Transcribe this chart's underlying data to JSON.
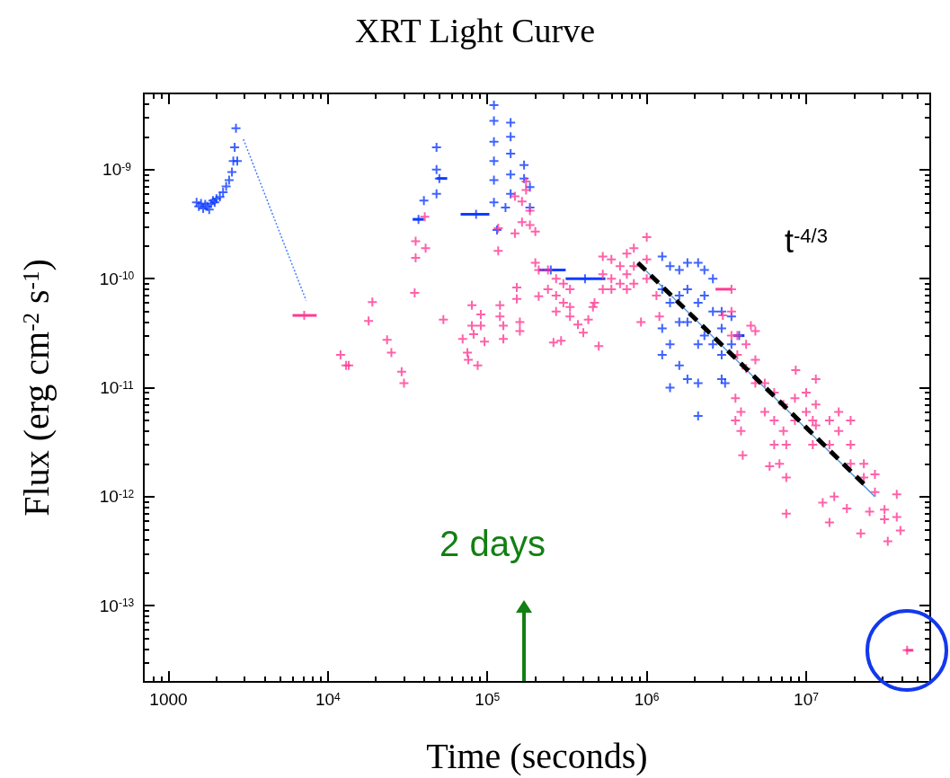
{
  "chart_data": {
    "type": "scatter",
    "title": "XRT Light Curve",
    "xlabel": "Time (seconds)",
    "ylabel": "Flux (erg cm$^{-2}$ s$^{-1}$)",
    "log": "xy",
    "xlim": [
      700,
      60000000
    ],
    "ylim": [
      2e-14,
      5e-09
    ],
    "xticks": [
      {
        "value": 700,
        "label": null
      },
      {
        "value": 800,
        "label": null
      },
      {
        "value": 900,
        "label": null
      },
      1000,
      {
        "value": 2000,
        "label": null
      },
      {
        "value": 3000,
        "label": null
      },
      {
        "value": 4000,
        "label": null
      },
      {
        "value": 5000,
        "label": null
      },
      {
        "value": 6000,
        "label": null
      },
      {
        "value": 7000,
        "label": null
      },
      {
        "value": 8000,
        "label": null
      },
      {
        "value": 9000,
        "label": null
      },
      {
        "value": 10000,
        "label": "10$^{4}$"
      },
      {
        "value": 20000,
        "label": null
      },
      {
        "value": 30000,
        "label": null
      },
      {
        "value": 40000,
        "label": null
      },
      {
        "value": 50000,
        "label": null
      },
      {
        "value": 60000,
        "label": null
      },
      {
        "value": 70000,
        "label": null
      },
      {
        "value": 80000,
        "label": null
      },
      {
        "value": 90000,
        "label": null
      },
      {
        "value": 100000,
        "label": "10$^{5}$"
      },
      {
        "value": 200000,
        "label": null
      },
      {
        "value": 300000,
        "label": null
      },
      {
        "value": 400000,
        "label": null
      },
      {
        "value": 500000,
        "label": null
      },
      {
        "value": 600000,
        "label": null
      },
      {
        "value": 700000,
        "label": null
      },
      {
        "value": 800000,
        "label": null
      },
      {
        "value": 900000,
        "label": null
      },
      {
        "value": 1000000,
        "label": "10$^{6}$"
      },
      {
        "value": 2000000,
        "label": null
      },
      {
        "value": 3000000,
        "label": null
      },
      {
        "value": 4000000,
        "label": null
      },
      {
        "value": 5000000,
        "label": null
      },
      {
        "value": 6000000,
        "label": null
      },
      {
        "value": 7000000,
        "label": null
      },
      {
        "value": 8000000,
        "label": null
      },
      {
        "value": 9000000,
        "label": null
      },
      {
        "value": 10000000,
        "label": "10$^{7}$"
      },
      {
        "value": 20000000,
        "label": null
      },
      {
        "value": 30000000,
        "label": null
      },
      {
        "value": 40000000,
        "label": null
      },
      {
        "value": 50000000,
        "label": null
      }
    ],
    "yticks": [
      {
        "value": 3e-14,
        "label": null
      },
      {
        "value": 4e-14,
        "label": null
      },
      {
        "value": 5e-14,
        "label": null
      },
      {
        "value": 6e-14,
        "label": null
      },
      {
        "value": 7e-14,
        "label": null
      },
      {
        "value": 8e-14,
        "label": null
      },
      {
        "value": 9e-14,
        "label": null
      },
      {
        "value": 1e-13,
        "label": "10$^{-13}$"
      },
      {
        "value": 2e-13,
        "label": null
      },
      {
        "value": 3e-13,
        "label": null
      },
      {
        "value": 4e-13,
        "label": null
      },
      {
        "value": 5e-13,
        "label": null
      },
      {
        "value": 6e-13,
        "label": null
      },
      {
        "value": 7e-13,
        "label": null
      },
      {
        "value": 8e-13,
        "label": null
      },
      {
        "value": 9e-13,
        "label": null
      },
      {
        "value": 1e-12,
        "label": "10$^{-12}$"
      },
      {
        "value": 2e-12,
        "label": null
      },
      {
        "value": 3e-12,
        "label": null
      },
      {
        "value": 4e-12,
        "label": null
      },
      {
        "value": 5e-12,
        "label": null
      },
      {
        "value": 6e-12,
        "label": null
      },
      {
        "value": 7e-12,
        "label": null
      },
      {
        "value": 8e-12,
        "label": null
      },
      {
        "value": 9e-12,
        "label": null
      },
      {
        "value": 1e-11,
        "label": "10$^{-11}$"
      },
      {
        "value": 2e-11,
        "label": null
      },
      {
        "value": 3e-11,
        "label": null
      },
      {
        "value": 4e-11,
        "label": null
      },
      {
        "value": 5e-11,
        "label": null
      },
      {
        "value": 6e-11,
        "label": null
      },
      {
        "value": 7e-11,
        "label": null
      },
      {
        "value": 8e-11,
        "label": null
      },
      {
        "value": 9e-11,
        "label": null
      },
      {
        "value": 1e-10,
        "label": "10$^{-10}$"
      },
      {
        "value": 2e-10,
        "label": null
      },
      {
        "value": 3e-10,
        "label": null
      },
      {
        "value": 4e-10,
        "label": null
      },
      {
        "value": 5e-10,
        "label": null
      },
      {
        "value": 6e-10,
        "label": null
      },
      {
        "value": 7e-10,
        "label": null
      },
      {
        "value": 8e-10,
        "label": null
      },
      {
        "value": 9e-10,
        "label": null
      },
      {
        "value": 1e-09,
        "label": "10$^{-9}$"
      },
      {
        "value": 2e-09,
        "label": null
      },
      {
        "value": 3e-09,
        "label": null
      },
      {
        "value": 4e-09,
        "label": null
      }
    ],
    "marker": "cross",
    "series": [
      {
        "color": "#0f3cff",
        "x": [
          1500,
          1550,
          1600,
          1650,
          1700,
          1750,
          1800,
          1850,
          1900,
          1950,
          2000,
          2100,
          2200,
          2300,
          2400,
          2500,
          2550,
          2600,
          2650,
          2700,
          37000,
          40000,
          48000,
          48000,
          48000,
          50000,
          85000,
          110000,
          110000,
          110000,
          110000,
          110000,
          110000,
          115000,
          130000,
          140000,
          140000,
          140000,
          140000,
          140000,
          170000,
          170000,
          185000,
          185000,
          250000,
          410000,
          1250000,
          1250000,
          1250000,
          1250000,
          1400000,
          1400000,
          1400000,
          1400000,
          1600000,
          1600000,
          1600000,
          1600000,
          1800000,
          1800000,
          1800000,
          1800000,
          2100000,
          2100000,
          2100000,
          2100000,
          2100000,
          2300000,
          2300000,
          2300000,
          2600000,
          2600000,
          2600000,
          2950000,
          2950000,
          2950000,
          2950000,
          3100000,
          3400000,
          3400000,
          3800000
        ],
        "values": [
          5e-10,
          4.6e-10,
          4.9e-10,
          4.4e-10,
          4.8e-10,
          4.6e-10,
          4.3e-10,
          4.9e-10,
          5.2e-10,
          5e-10,
          5.4e-10,
          5.6e-10,
          6.2e-10,
          7e-10,
          8e-10,
          9.5e-10,
          1.2e-09,
          1.6e-09,
          2.4e-09,
          1.2e-09,
          3.5e-10,
          5.2e-10,
          1.6e-09,
          1e-09,
          6e-10,
          8.3e-10,
          3.9e-10,
          3.9e-09,
          2.8e-09,
          1.8e-09,
          1.2e-09,
          8e-10,
          5e-10,
          2.8e-10,
          4.5e-10,
          2.7e-09,
          2e-09,
          1.4e-09,
          9e-10,
          6e-10,
          1.1e-09,
          8.3e-10,
          6.9e-10,
          4.5e-10,
          1.2e-10,
          1e-10,
          1.6e-10,
          8e-11,
          3.5e-11,
          2e-11,
          1.3e-10,
          6e-11,
          2.5e-11,
          1e-11,
          1.2e-10,
          7e-11,
          4e-11,
          1.6e-11,
          1.4e-10,
          8e-11,
          4e-11,
          1.2e-11,
          1.4e-10,
          6e-11,
          2.5e-11,
          1.1e-11,
          5.5e-12,
          1.2e-10,
          7e-11,
          3e-11,
          1e-10,
          5e-11,
          2.5e-11,
          5e-11,
          3.5e-11,
          2e-11,
          1.2e-11,
          1.1e-11,
          4.5e-11,
          2.5e-11,
          3e-11
        ],
        "xerrors": [
          null,
          null,
          null,
          null,
          null,
          null,
          null,
          null,
          null,
          null,
          null,
          null,
          null,
          null,
          null,
          null,
          null,
          null,
          null,
          null,
          [
            34000,
            40000
          ],
          null,
          null,
          null,
          null,
          [
            48000,
            56000
          ],
          [
            68000,
            103000
          ],
          null,
          null,
          null,
          null,
          null,
          null,
          null,
          null,
          null,
          null,
          null,
          null,
          null,
          null,
          null,
          null,
          null,
          [
            210000,
            310000
          ],
          [
            310000,
            550000
          ],
          null,
          null,
          null,
          null,
          null,
          null,
          null,
          null,
          null,
          null,
          null,
          null,
          null,
          null,
          null,
          null,
          null,
          null,
          null,
          null,
          null,
          null,
          null,
          null,
          null,
          null,
          null,
          null,
          null,
          null,
          null,
          null,
          null,
          null,
          [
            3500000,
            4100000
          ]
        ]
      },
      {
        "color": "#ff3a94",
        "x": [
          7100,
          12000,
          13000,
          13500,
          18000,
          19000,
          23500,
          25000,
          29000,
          30000,
          35000,
          35500,
          35500,
          40500,
          41000,
          53000,
          70000,
          75000,
          76000,
          80000,
          80000,
          82000,
          87000,
          91000,
          91000,
          96000,
          117000,
          117000,
          120000,
          120000,
          126000,
          126000,
          149000,
          149000,
          153000,
          153000,
          160000,
          160000,
          165000,
          165000,
          175000,
          175000,
          185000,
          185000,
          200000,
          200000,
          210000,
          210000,
          240000,
          240000,
          260000,
          270000,
          270000,
          270000,
          290000,
          300000,
          300000,
          330000,
          330000,
          330000,
          370000,
          400000,
          430000,
          460000,
          470000,
          500000,
          530000,
          530000,
          530000,
          600000,
          600000,
          600000,
          680000,
          680000,
          750000,
          750000,
          750000,
          830000,
          830000,
          830000,
          920000,
          1000000,
          1000000,
          1000000,
          1150000,
          1200000,
          3000000,
          3400000,
          3400000,
          3400000,
          3600000,
          3600000,
          3700000,
          3700000,
          3900000,
          3900000,
          4000000,
          4200000,
          4200000,
          4500000,
          4800000,
          4800000,
          4800000,
          5500000,
          5500000,
          5900000,
          6300000,
          6300000,
          6300000,
          6800000,
          7200000,
          7200000,
          7500000,
          7500000,
          7500000,
          8500000,
          8500000,
          8600000,
          10000000,
          10000000,
          11000000,
          11000000,
          11500000,
          11500000,
          11500000,
          12700000,
          14000000,
          14000000,
          14000000,
          15000000,
          16000000,
          16000000,
          18000000,
          19000000,
          19000000,
          19000000,
          22000000,
          23000000,
          23000000,
          25000000,
          27000000,
          27000000,
          31000000,
          31000000,
          32500000,
          37000000,
          37000000,
          39000000,
          43000000
        ],
        "values": [
          4.6e-11,
          2e-11,
          1.6e-11,
          1.6e-11,
          4.1e-11,
          6.1e-11,
          2.75e-11,
          2.1e-11,
          1.4e-11,
          1.1e-11,
          7.4e-11,
          2.2e-10,
          1.55e-10,
          3.7e-10,
          1.9e-10,
          4.2e-11,
          2.8e-11,
          2.1e-11,
          1.8e-11,
          5.7e-11,
          3.7e-11,
          3.1e-11,
          1.6e-11,
          4.7e-11,
          3.7e-11,
          2.65e-11,
          2.9e-10,
          1.8e-10,
          5.7e-11,
          4.5e-11,
          3.7e-11,
          2.8e-11,
          5.7e-10,
          2.6e-10,
          8.3e-11,
          6.5e-11,
          4e-11,
          3.3e-11,
          5.1e-10,
          3.3e-10,
          7.8e-10,
          6.5e-10,
          4.2e-10,
          3.1e-10,
          2.7e-10,
          1.4e-10,
          1.2e-10,
          6.9e-11,
          1.2e-10,
          8e-11,
          2.6e-11,
          1e-10,
          7e-11,
          5e-11,
          2.7e-11,
          9e-11,
          6e-11,
          8e-11,
          5.5e-11,
          4.5e-11,
          3.8e-11,
          3.2e-11,
          4.2e-11,
          5.5e-11,
          6e-11,
          2.4e-11,
          1.6e-10,
          1.1e-10,
          8e-11,
          1.5e-10,
          1e-10,
          8e-11,
          1.3e-10,
          9e-11,
          1.7e-10,
          1.1e-10,
          8e-11,
          1.9e-10,
          1.3e-10,
          9e-11,
          4e-11,
          2.4e-10,
          1.5e-10,
          1e-10,
          7e-11,
          4.5e-11,
          4.6e-11,
          8e-11,
          5e-11,
          3e-11,
          8e-12,
          5e-12,
          3e-11,
          2e-11,
          6e-12,
          4e-12,
          2.4e-12,
          2.5e-11,
          1.5e-11,
          3.7e-11,
          3.3e-11,
          1.8e-11,
          1.1e-11,
          1.1e-11,
          6e-12,
          1.9e-12,
          9e-12,
          5e-12,
          3e-12,
          2e-12,
          7e-12,
          4e-12,
          3e-12,
          1.5e-12,
          7e-13,
          8e-12,
          5e-12,
          1.45e-11,
          9e-12,
          6e-12,
          5e-12,
          3e-12,
          1.2e-11,
          7e-12,
          4.5e-12,
          8.8e-13,
          5.8e-13,
          5e-12,
          3e-12,
          1e-12,
          6e-12,
          4e-12,
          7.8e-13,
          5e-12,
          3e-12,
          2e-12,
          4.6e-13,
          2e-12,
          1.5e-12,
          7.3e-13,
          1.6e-12,
          1.1e-12,
          7.6e-13,
          6.2e-13,
          3.9e-13,
          1.05e-12,
          6.5e-13,
          4.9e-13,
          3.9e-14
        ],
        "xerrors": [
          [
            6000,
            8500
          ],
          null,
          null,
          null,
          null,
          null,
          null,
          null,
          null,
          null,
          null,
          null,
          null,
          null,
          null,
          null,
          null,
          null,
          null,
          null,
          null,
          null,
          null,
          null,
          null,
          null,
          null,
          null,
          null,
          null,
          null,
          null,
          null,
          null,
          null,
          null,
          null,
          null,
          null,
          null,
          null,
          null,
          null,
          null,
          null,
          null,
          null,
          null,
          null,
          null,
          null,
          null,
          null,
          null,
          null,
          null,
          null,
          null,
          null,
          null,
          null,
          null,
          null,
          null,
          null,
          null,
          null,
          null,
          null,
          null,
          null,
          null,
          null,
          null,
          null,
          null,
          null,
          null,
          null,
          null,
          null,
          null,
          null,
          null,
          null,
          null,
          null,
          [
            2700000,
            3400000
          ],
          null,
          null,
          null,
          null,
          null,
          null,
          null,
          null,
          null,
          null,
          null,
          null,
          null,
          null,
          null,
          null,
          null,
          null,
          null,
          null,
          null,
          null,
          null,
          null,
          null,
          null,
          null,
          null,
          null,
          null,
          null,
          null,
          null,
          null,
          null,
          null,
          null,
          null,
          null,
          null,
          null,
          null,
          null,
          null,
          null,
          null,
          null,
          null,
          null,
          null,
          null,
          null,
          null,
          null,
          null,
          null,
          null,
          null,
          null,
          null,
          [
            42000000,
            47000000
          ]
        ]
      },
      {
        "type": "line",
        "color": "#4a7cff",
        "line_style": "dotted",
        "marker": "none",
        "x": [
          2950,
          7300
        ],
        "values": [
          1.9e-09,
          6.3e-11
        ]
      },
      {
        "type": "line",
        "color": "#5a9ad8",
        "line_style": "solid",
        "marker": "none",
        "x": [
          880000,
          27000000
        ],
        "values": [
          1.4e-10,
          1e-12
        ]
      },
      {
        "type": "line",
        "color": "#000000",
        "line_style": "dashed",
        "marker": "none",
        "x": [
          880000,
          24000000
        ],
        "values": [
          1.4e-10,
          1.23e-12
        ]
      }
    ],
    "annotations": [
      "t$^{-4/3}$",
      "2 days"
    ]
  }
}
